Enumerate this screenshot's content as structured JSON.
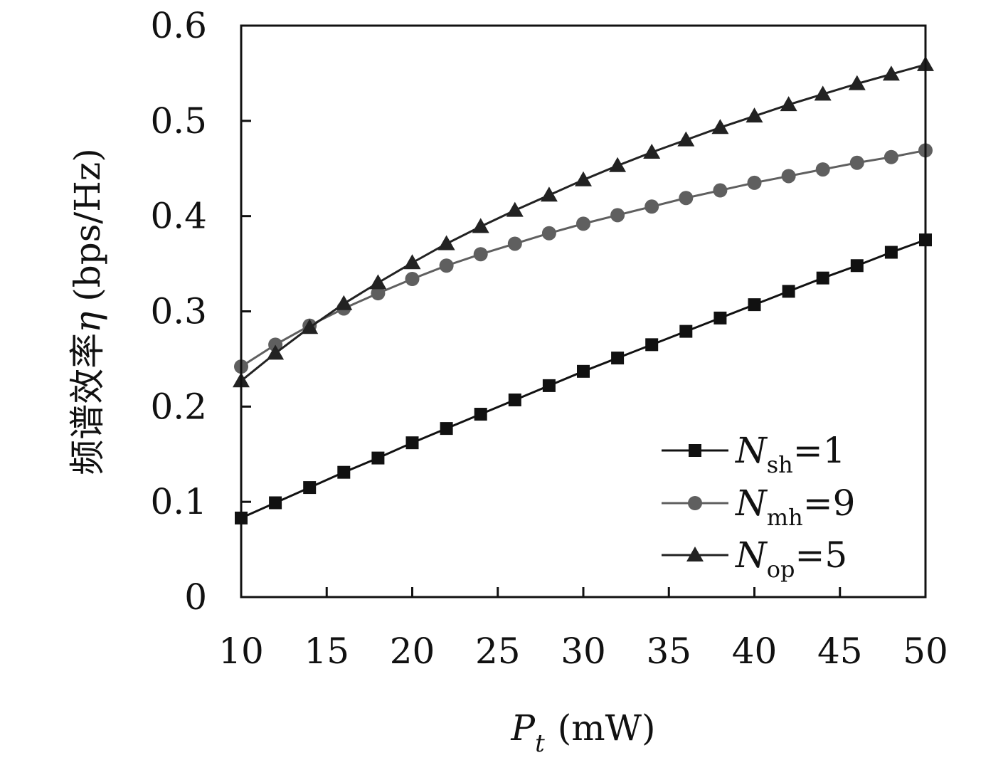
{
  "chart_data": {
    "type": "line",
    "title": "",
    "xlabel": {
      "symbol": "P",
      "subscript": "t",
      "unit": "(mW)"
    },
    "ylabel": {
      "text": "频谱效率",
      "symbol": "η",
      "unit": "(bps/Hz)"
    },
    "xlim": [
      10,
      50
    ],
    "ylim": [
      0,
      0.6
    ],
    "xticks": [
      10,
      15,
      20,
      25,
      30,
      35,
      40,
      45,
      50
    ],
    "yticks": [
      0,
      0.1,
      0.2,
      0.3,
      0.4,
      0.5,
      0.6
    ],
    "ytick_labels": [
      "0",
      "0.1",
      "0.2",
      "0.3",
      "0.4",
      "0.5",
      "0.6"
    ],
    "grid": false,
    "legend_position": "bottom-right",
    "x": [
      10,
      12,
      14,
      16,
      18,
      20,
      22,
      24,
      26,
      28,
      30,
      32,
      34,
      36,
      38,
      40,
      42,
      44,
      46,
      48,
      50
    ],
    "series": [
      {
        "name": "N_sh=1",
        "label_symbol": "N",
        "label_sub": "sh",
        "label_value": "=1",
        "marker": "square",
        "color": "#111111",
        "values": [
          0.083,
          0.099,
          0.115,
          0.131,
          0.146,
          0.162,
          0.177,
          0.192,
          0.207,
          0.222,
          0.237,
          0.251,
          0.265,
          0.279,
          0.293,
          0.307,
          0.321,
          0.335,
          0.348,
          0.362,
          0.375
        ]
      },
      {
        "name": "N_mh=9",
        "label_symbol": "N",
        "label_sub": "mh",
        "label_value": "=9",
        "marker": "circle",
        "color": "#5f5f5f",
        "values": [
          0.242,
          0.265,
          0.285,
          0.303,
          0.319,
          0.334,
          0.348,
          0.36,
          0.371,
          0.382,
          0.392,
          0.401,
          0.41,
          0.419,
          0.427,
          0.435,
          0.442,
          0.449,
          0.456,
          0.462,
          0.469
        ]
      },
      {
        "name": "N_op=5",
        "label_symbol": "N",
        "label_sub": "op",
        "label_value": "=5",
        "marker": "triangle",
        "color": "#222222",
        "values": [
          0.227,
          0.256,
          0.283,
          0.308,
          0.33,
          0.351,
          0.371,
          0.389,
          0.406,
          0.422,
          0.438,
          0.453,
          0.467,
          0.48,
          0.493,
          0.505,
          0.517,
          0.528,
          0.539,
          0.549,
          0.559
        ]
      }
    ]
  }
}
